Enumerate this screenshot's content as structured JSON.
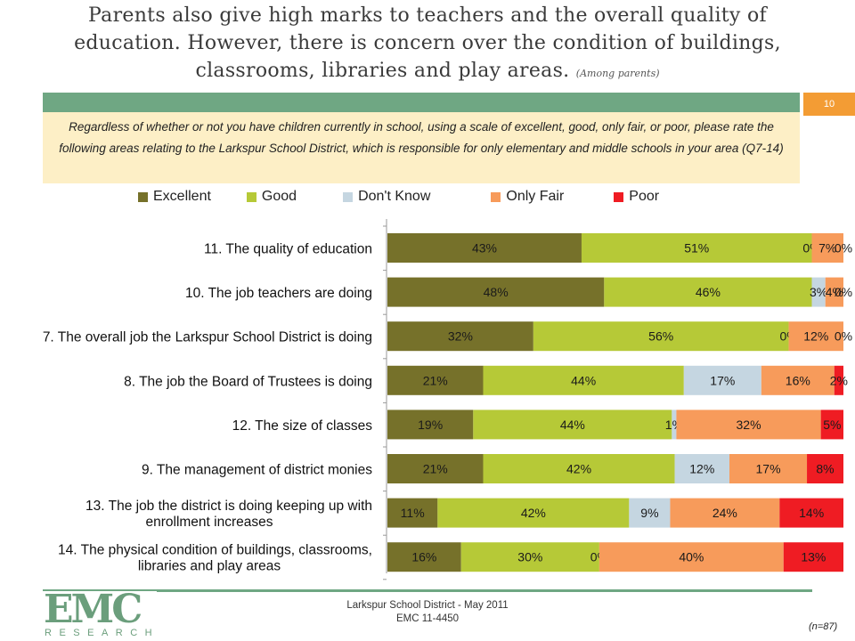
{
  "title": {
    "line1": "Parents also give high marks to teachers and the overall quality of",
    "line2": "education.  However, there is concern over the condition of buildings,",
    "line3": "classrooms, libraries and play areas.",
    "note": "(Among parents)"
  },
  "page_number": "10",
  "question": "Regardless of whether or not you have children currently in school, using a scale of excellent, good, only fair, or poor, please rate the following areas relating to the Larkspur School District, which is responsible for only elementary and middle schools in your area (Q7-14)",
  "legend": [
    {
      "label": "Excellent",
      "color": "#76712a"
    },
    {
      "label": "Good",
      "color": "#b6c937"
    },
    {
      "label": "Don't Know",
      "color": "#c5d6e1"
    },
    {
      "label": "Only Fair",
      "color": "#f79b5b"
    },
    {
      "label": "Poor",
      "color": "#ef1c23"
    }
  ],
  "chart_data": {
    "type": "bar",
    "orientation": "horizontal",
    "stacked": true,
    "categories": [
      "11. The quality of education",
      "10. The job teachers are doing",
      "7. The overall job the Larkspur School District is doing",
      "8. The job the Board of Trustees is doing",
      "12. The size of classes",
      "9. The management of district monies",
      "13. The job the district is doing keeping up with enrollment increases",
      "14. The physical condition of buildings, classrooms, libraries and play areas"
    ],
    "category_lines": [
      [
        "11. The quality of education"
      ],
      [
        "10. The job teachers are doing"
      ],
      [
        "7. The overall job the Larkspur School District is doing"
      ],
      [
        "8. The job the Board of Trustees is doing"
      ],
      [
        "12. The size of classes"
      ],
      [
        "9. The management of district monies"
      ],
      [
        "13. The job the district is doing keeping up with",
        "enrollment increases"
      ],
      [
        "14. The physical condition of buildings, classrooms,",
        "libraries and play areas"
      ]
    ],
    "series": [
      {
        "name": "Excellent",
        "color": "#76712a",
        "values": [
          43,
          48,
          32,
          21,
          19,
          21,
          11,
          16
        ],
        "labels": [
          "43%",
          "48%",
          "32%",
          "21%",
          "19%",
          "21%",
          "11%",
          "16%"
        ]
      },
      {
        "name": "Good",
        "color": "#b6c937",
        "values": [
          51,
          46,
          56,
          44,
          44,
          42,
          42,
          30
        ],
        "labels": [
          "51%",
          "46%",
          "56%",
          "44%",
          "44%",
          "42%",
          "42%",
          "30%"
        ]
      },
      {
        "name": "Don't Know",
        "color": "#c5d6e1",
        "values": [
          0,
          3,
          0,
          17,
          1,
          12,
          9,
          0
        ],
        "labels": [
          "0%",
          "3%",
          "0%",
          "17%",
          "1%",
          "12%",
          "9%",
          "0%"
        ]
      },
      {
        "name": "Only Fair",
        "color": "#f79b5b",
        "values": [
          7,
          4,
          12,
          16,
          32,
          17,
          24,
          40
        ],
        "labels": [
          "7%",
          "4%",
          "12%",
          "16%",
          "32%",
          "17%",
          "24%",
          "40%"
        ]
      },
      {
        "name": "Poor",
        "color": "#ef1c23",
        "values": [
          0,
          0,
          0,
          2,
          5,
          8,
          14,
          13
        ],
        "labels": [
          "0%",
          "0%",
          "0%",
          "2%",
          "5%",
          "8%",
          "14%",
          "13%"
        ]
      }
    ]
  },
  "logo": {
    "letters": "EMC",
    "subtext": "RESEARCH"
  },
  "footer": {
    "line1": "Larkspur School District - May 2011",
    "line2": "EMC 11-4450"
  },
  "sample_size": "(n=87)"
}
